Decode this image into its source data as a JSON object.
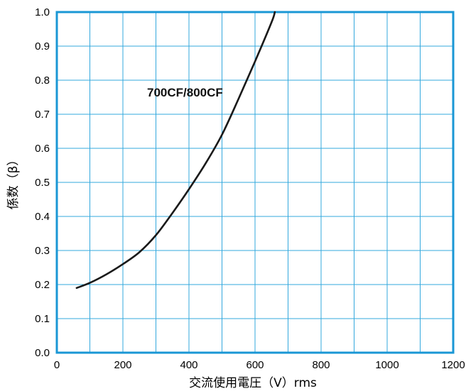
{
  "chart_data": {
    "type": "line",
    "title": "",
    "xlabel": "交流使用電圧（V）rms",
    "ylabel": "係数（β）",
    "xlim": [
      0,
      1200
    ],
    "ylim": [
      0,
      1.0
    ],
    "grid": true,
    "xticks": [
      0,
      200,
      400,
      600,
      800,
      1000,
      1200
    ],
    "xtick_labels": [
      "0",
      "200",
      "400",
      "600",
      "800",
      "1000",
      "1200"
    ],
    "yticks": [
      0,
      0.1,
      0.2,
      0.3,
      0.4,
      0.5,
      0.6,
      0.7,
      0.8,
      0.9,
      1.0
    ],
    "ytick_labels": [
      "0.0",
      "0.1",
      "0.2",
      "0.3",
      "0.4",
      "0.5",
      "0.6",
      "0.7",
      "0.8",
      "0.9",
      "1.0"
    ],
    "series": [
      {
        "name": "700CF/800CF",
        "x": [
          60,
          100,
          150,
          200,
          250,
          300,
          350,
          400,
          450,
          500,
          550,
          600,
          650,
          660
        ],
        "y": [
          0.19,
          0.205,
          0.23,
          0.26,
          0.295,
          0.345,
          0.41,
          0.48,
          0.555,
          0.64,
          0.745,
          0.855,
          0.97,
          1.0
        ]
      }
    ],
    "colors": {
      "frame": "#1a97d5",
      "grid": "#33a8de",
      "line": "#1a1a1a"
    }
  }
}
